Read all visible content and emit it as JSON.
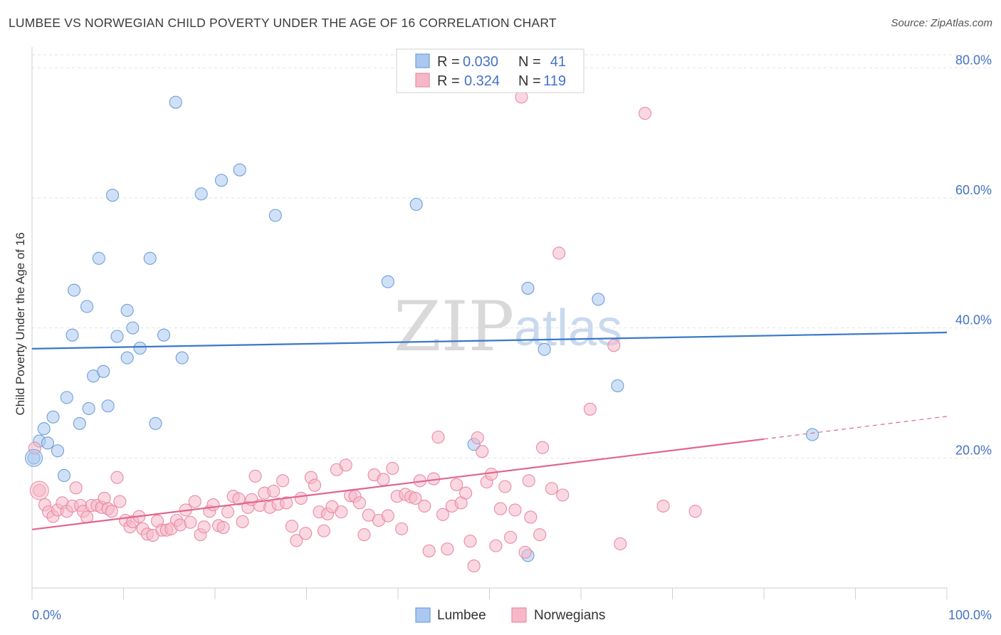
{
  "title": "LUMBEE VS NORWEGIAN CHILD POVERTY UNDER THE AGE OF 16 CORRELATION CHART",
  "source": "Source: ZipAtlas.com",
  "watermark": {
    "zip": "ZIP",
    "atlas": "atlas"
  },
  "legend": {
    "rows": [
      {
        "r_label": "R =",
        "r_value": "0.030",
        "n_label": "N =",
        "n_value": "41",
        "color": "#aac8f0"
      },
      {
        "r_label": "R =",
        "r_value": "0.324",
        "n_label": "N =",
        "n_value": "119",
        "color": "#f6b8c8"
      }
    ]
  },
  "bottom_legend": [
    {
      "label": "Lumbee",
      "color": "#aac8f0"
    },
    {
      "label": "Norwegians",
      "color": "#f6b8c8"
    }
  ],
  "chart_data": {
    "type": "scatter",
    "title": "LUMBEE VS NORWEGIAN CHILD POVERTY UNDER THE AGE OF 16 CORRELATION CHART",
    "xlabel": "",
    "ylabel": "Child Poverty Under the Age of 16",
    "xlim": [
      0,
      100
    ],
    "ylim": [
      0,
      82
    ],
    "x_tick_labels": [
      "0.0%",
      "100.0%"
    ],
    "y_ticks": [
      20,
      40,
      60,
      80
    ],
    "y_tick_labels": [
      "20.0%",
      "40.0%",
      "60.0%",
      "80.0%"
    ],
    "grid": true,
    "legend_position": "top-center",
    "series": [
      {
        "name": "Lumbee",
        "color": "#aac8f0",
        "edge": "#6f9fd8",
        "trend": {
          "x0": 0,
          "y0": 36.8,
          "x1": 100,
          "y1": 39.3,
          "color": "#3a78c9"
        },
        "points": [
          [
            0.2,
            20
          ],
          [
            0.8,
            22.6
          ],
          [
            1.3,
            24.5
          ],
          [
            1.7,
            22.3
          ],
          [
            2.3,
            26.3
          ],
          [
            2.8,
            21.1
          ],
          [
            3.5,
            17.3
          ],
          [
            3.8,
            29.3
          ],
          [
            4.4,
            38.9
          ],
          [
            4.6,
            45.8
          ],
          [
            5.2,
            25.3
          ],
          [
            6.0,
            43.3
          ],
          [
            6.2,
            27.6
          ],
          [
            6.7,
            32.6
          ],
          [
            7.3,
            50.7
          ],
          [
            7.8,
            33.3
          ],
          [
            8.3,
            28.0
          ],
          [
            8.8,
            60.4
          ],
          [
            9.3,
            38.7
          ],
          [
            10.4,
            42.7
          ],
          [
            10.4,
            35.4
          ],
          [
            11.0,
            40.0
          ],
          [
            11.8,
            36.9
          ],
          [
            12.9,
            50.7
          ],
          [
            13.5,
            25.3
          ],
          [
            14.4,
            38.9
          ],
          [
            15.7,
            74.7
          ],
          [
            16.4,
            35.4
          ],
          [
            18.5,
            60.6
          ],
          [
            20.7,
            62.7
          ],
          [
            22.7,
            64.3
          ],
          [
            26.6,
            57.3
          ],
          [
            38.9,
            47.1
          ],
          [
            42.0,
            59.0
          ],
          [
            48.3,
            22.1
          ],
          [
            54.2,
            46.1
          ],
          [
            56.0,
            36.7
          ],
          [
            61.9,
            44.4
          ],
          [
            64.0,
            31.1
          ],
          [
            85.3,
            23.6
          ],
          [
            54.2,
            5.0
          ]
        ]
      },
      {
        "name": "Norwegians",
        "color": "#f6b8c8",
        "edge": "#e98aa6",
        "trend": {
          "x0": 0,
          "y0": 9.0,
          "x1": 80,
          "y1": 22.9,
          "dash_to_x": 100,
          "dash_to_y": 26.4,
          "color": "#e06690"
        },
        "points": [
          [
            0.3,
            21.5
          ],
          [
            0.8,
            15.0
          ],
          [
            1.4,
            12.8
          ],
          [
            1.8,
            11.7
          ],
          [
            2.3,
            11.0
          ],
          [
            2.8,
            12.0
          ],
          [
            3.3,
            13.1
          ],
          [
            3.8,
            11.8
          ],
          [
            4.4,
            12.6
          ],
          [
            4.8,
            15.4
          ],
          [
            5.3,
            12.7
          ],
          [
            5.6,
            11.8
          ],
          [
            6.0,
            10.9
          ],
          [
            6.5,
            12.7
          ],
          [
            7.1,
            12.7
          ],
          [
            7.6,
            12.4
          ],
          [
            7.9,
            13.8
          ],
          [
            8.3,
            12.2
          ],
          [
            8.7,
            11.8
          ],
          [
            9.3,
            17.0
          ],
          [
            9.6,
            13.3
          ],
          [
            10.2,
            10.4
          ],
          [
            10.7,
            9.4
          ],
          [
            11.0,
            10.2
          ],
          [
            11.7,
            11.0
          ],
          [
            12.1,
            9.1
          ],
          [
            12.6,
            8.3
          ],
          [
            13.2,
            8.1
          ],
          [
            13.7,
            10.3
          ],
          [
            14.2,
            8.9
          ],
          [
            14.7,
            8.9
          ],
          [
            15.2,
            9.1
          ],
          [
            15.8,
            10.4
          ],
          [
            16.2,
            9.7
          ],
          [
            16.8,
            12.0
          ],
          [
            17.3,
            10.1
          ],
          [
            17.8,
            13.3
          ],
          [
            18.4,
            8.2
          ],
          [
            18.8,
            9.4
          ],
          [
            19.4,
            11.8
          ],
          [
            19.8,
            12.8
          ],
          [
            20.4,
            9.6
          ],
          [
            20.9,
            9.3
          ],
          [
            21.4,
            11.7
          ],
          [
            22.0,
            14.1
          ],
          [
            22.6,
            13.7
          ],
          [
            23.0,
            10.2
          ],
          [
            23.6,
            12.4
          ],
          [
            24.0,
            13.6
          ],
          [
            24.4,
            17.2
          ],
          [
            24.9,
            12.7
          ],
          [
            25.4,
            14.6
          ],
          [
            26.0,
            12.4
          ],
          [
            26.4,
            14.9
          ],
          [
            26.9,
            12.9
          ],
          [
            27.4,
            16.5
          ],
          [
            27.8,
            13.1
          ],
          [
            28.4,
            9.5
          ],
          [
            28.9,
            7.3
          ],
          [
            29.4,
            13.8
          ],
          [
            29.9,
            8.4
          ],
          [
            30.5,
            17.0
          ],
          [
            30.9,
            15.8
          ],
          [
            31.4,
            11.7
          ],
          [
            31.9,
            8.8
          ],
          [
            32.3,
            11.4
          ],
          [
            32.8,
            12.5
          ],
          [
            33.3,
            18.2
          ],
          [
            33.8,
            11.7
          ],
          [
            34.3,
            18.9
          ],
          [
            34.8,
            14.2
          ],
          [
            35.3,
            14.1
          ],
          [
            35.8,
            13.1
          ],
          [
            36.3,
            8.2
          ],
          [
            36.8,
            11.2
          ],
          [
            37.4,
            17.4
          ],
          [
            37.9,
            10.4
          ],
          [
            38.4,
            16.7
          ],
          [
            38.9,
            11.1
          ],
          [
            39.4,
            18.4
          ],
          [
            39.9,
            14.1
          ],
          [
            40.4,
            9.1
          ],
          [
            40.8,
            14.4
          ],
          [
            41.4,
            14.0
          ],
          [
            41.9,
            13.8
          ],
          [
            42.4,
            16.5
          ],
          [
            42.9,
            12.6
          ],
          [
            43.4,
            5.7
          ],
          [
            43.9,
            16.8
          ],
          [
            44.4,
            23.2
          ],
          [
            44.9,
            11.3
          ],
          [
            45.4,
            6.0
          ],
          [
            45.9,
            12.6
          ],
          [
            46.4,
            15.9
          ],
          [
            46.9,
            13.1
          ],
          [
            47.4,
            14.6
          ],
          [
            47.9,
            7.2
          ],
          [
            48.3,
            3.4
          ],
          [
            48.7,
            23.1
          ],
          [
            49.2,
            21.0
          ],
          [
            49.7,
            16.3
          ],
          [
            50.2,
            17.5
          ],
          [
            50.7,
            6.5
          ],
          [
            51.2,
            12.2
          ],
          [
            51.7,
            15.6
          ],
          [
            52.3,
            7.8
          ],
          [
            52.8,
            12.0
          ],
          [
            53.5,
            75.5
          ],
          [
            53.9,
            5.5
          ],
          [
            54.3,
            16.5
          ],
          [
            54.5,
            10.9
          ],
          [
            55.5,
            8.2
          ],
          [
            55.8,
            21.6
          ],
          [
            56.8,
            15.3
          ],
          [
            57.6,
            51.5
          ],
          [
            58.0,
            14.3
          ],
          [
            61.0,
            27.5
          ],
          [
            63.6,
            37.3
          ],
          [
            64.3,
            6.8
          ],
          [
            67.0,
            73.0
          ],
          [
            69.0,
            12.6
          ],
          [
            72.5,
            11.8
          ]
        ]
      }
    ]
  }
}
